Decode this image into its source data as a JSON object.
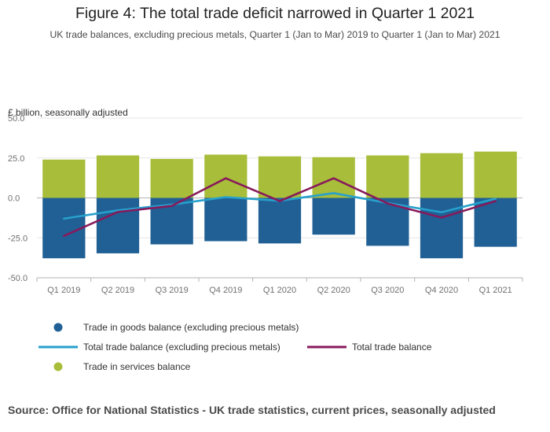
{
  "title": "Figure 4: The total trade deficit narrowed in Quarter 1 2021",
  "subtitle": "UK trade balances, excluding precious metals, Quarter 1 (Jan to Mar) 2019 to Quarter 1 (Jan to Mar) 2021",
  "source": "Source: Office for National Statistics - UK trade statistics, current prices, seasonally adjusted",
  "colors": {
    "goods": "#206095",
    "services": "#a8bd3a",
    "total_excl": "#27a0cc",
    "total": "#871a5b"
  },
  "chart_data": {
    "type": "bar",
    "unit_label": "£ billion, seasonally adjusted",
    "categories": [
      "Q1 2019",
      "Q2 2019",
      "Q3 2019",
      "Q4 2019",
      "Q1 2020",
      "Q2 2020",
      "Q3 2020",
      "Q4 2020",
      "Q1 2021"
    ],
    "ylim": [
      -50,
      50
    ],
    "yticks": [
      "50.0",
      "25.0",
      "0.0",
      "-25.0",
      "-50.0"
    ],
    "ytick_values": [
      50,
      25,
      0,
      -25,
      -50
    ],
    "grid": true,
    "legend_placement": "bottom",
    "series": [
      {
        "name": "Trade in goods balance (excluding precious metals)",
        "kind": "bar",
        "values": [
          -37.8,
          -34.7,
          -29.1,
          -27.1,
          -28.5,
          -23.0,
          -30.0,
          -37.8,
          -30.6
        ]
      },
      {
        "name": "Trade in services balance",
        "kind": "bar",
        "values": [
          24.0,
          26.6,
          24.4,
          27.1,
          26.0,
          25.5,
          26.6,
          28.0,
          29.0
        ]
      },
      {
        "name": "Total trade balance (excluding precious metals)",
        "kind": "line",
        "values": [
          -13.0,
          -7.8,
          -4.2,
          0.5,
          -1.8,
          3.0,
          -3.2,
          -9.0,
          -0.5
        ]
      },
      {
        "name": "Total trade balance",
        "kind": "line",
        "values": [
          -23.8,
          -8.8,
          -5.0,
          12.3,
          -2.0,
          12.3,
          -3.5,
          -12.3,
          -2.0
        ]
      }
    ]
  }
}
